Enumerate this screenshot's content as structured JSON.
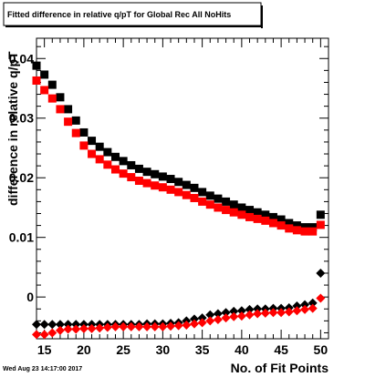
{
  "chart_data": {
    "type": "scatter",
    "title": "Fitted difference in relative q/pT for Global Rec All NoHits",
    "xlabel": "No. of Fit Points",
    "ylabel": "difference in relative q/pT",
    "xlim": [
      14,
      51
    ],
    "ylim": [
      -0.007,
      0.0434
    ],
    "x_ticks": [
      15,
      20,
      25,
      30,
      35,
      40,
      45,
      50
    ],
    "x_tick_labels": [
      "15",
      "20",
      "25",
      "30",
      "35",
      "40",
      "45",
      "50"
    ],
    "y_ticks": [
      0,
      0.01,
      0.02,
      0.03,
      0.04
    ],
    "y_tick_labels": [
      "0",
      "0.01",
      "0.02",
      "0.03",
      "0.04"
    ],
    "grid": false,
    "legend": "none",
    "x": [
      14,
      15,
      16,
      17,
      18,
      19,
      20,
      21,
      22,
      23,
      24,
      25,
      26,
      27,
      28,
      29,
      30,
      31,
      32,
      33,
      34,
      35,
      36,
      37,
      38,
      39,
      40,
      41,
      42,
      43,
      44,
      45,
      46,
      47,
      48,
      49,
      50
    ],
    "series": [
      {
        "color": "#000000",
        "marker": "square",
        "values": [
          0.0388,
          0.0373,
          0.0356,
          0.0335,
          0.0315,
          0.0296,
          0.0276,
          0.0262,
          0.0252,
          0.0243,
          0.0235,
          0.0228,
          0.0221,
          0.0215,
          0.021,
          0.0206,
          0.0202,
          0.0198,
          0.0193,
          0.0188,
          0.0183,
          0.0176,
          0.017,
          0.0165,
          0.016,
          0.0155,
          0.015,
          0.0146,
          0.0142,
          0.0138,
          0.0134,
          0.013,
          0.0124,
          0.012,
          0.0117,
          0.0117,
          0.0138
        ]
      },
      {
        "color": "#ff0000",
        "marker": "square",
        "values": [
          0.0363,
          0.0347,
          0.0333,
          0.0315,
          0.0294,
          0.0275,
          0.0254,
          0.024,
          0.0231,
          0.0222,
          0.0214,
          0.0207,
          0.0201,
          0.0195,
          0.0191,
          0.0187,
          0.0184,
          0.018,
          0.0176,
          0.0171,
          0.0166,
          0.016,
          0.0155,
          0.015,
          0.0146,
          0.0142,
          0.0138,
          0.0134,
          0.0131,
          0.0128,
          0.0124,
          0.012,
          0.0115,
          0.0112,
          0.011,
          0.011,
          0.0121
        ]
      },
      {
        "color": "#000000",
        "marker": "diamond",
        "values": [
          -0.0046,
          -0.0046,
          -0.0046,
          -0.0046,
          -0.0046,
          -0.0046,
          -0.0046,
          -0.0046,
          -0.0046,
          -0.0046,
          -0.0046,
          -0.0046,
          -0.0046,
          -0.0046,
          -0.0045,
          -0.0045,
          -0.0045,
          -0.0044,
          -0.0043,
          -0.004,
          -0.0037,
          -0.0035,
          -0.003,
          -0.0028,
          -0.0026,
          -0.0024,
          -0.0023,
          -0.0021,
          -0.002,
          -0.002,
          -0.0019,
          -0.0019,
          -0.0018,
          -0.0015,
          -0.0013,
          -0.001,
          0.004
        ]
      },
      {
        "color": "#ff0000",
        "marker": "diamond",
        "values": [
          -0.0063,
          -0.0063,
          -0.006,
          -0.0056,
          -0.0054,
          -0.0054,
          -0.0053,
          -0.0053,
          -0.0052,
          -0.0051,
          -0.005,
          -0.005,
          -0.005,
          -0.005,
          -0.005,
          -0.005,
          -0.005,
          -0.0049,
          -0.0048,
          -0.0047,
          -0.0045,
          -0.0043,
          -0.004,
          -0.0038,
          -0.0035,
          -0.0033,
          -0.0032,
          -0.003,
          -0.0028,
          -0.0027,
          -0.0026,
          -0.0026,
          -0.0025,
          -0.0023,
          -0.0021,
          -0.0019,
          -0.0002
        ]
      }
    ],
    "timestamp": "Wed Aug 23 14:17:00 2017"
  }
}
